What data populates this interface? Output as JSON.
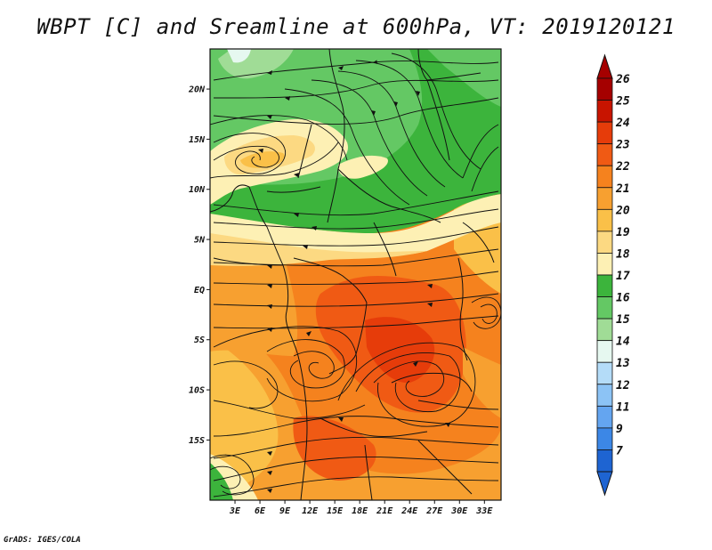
{
  "title": "WBPT [C] and Sreamline at 600hPa, VT: 2019120121",
  "credit": "GrADS: IGES/COLA",
  "map": {
    "lat_range": [
      -21,
      24
    ],
    "lon_range": [
      0,
      35
    ],
    "lat_ticks": [
      {
        "label": "20N",
        "lat": 20
      },
      {
        "label": "15N",
        "lat": 15
      },
      {
        "label": "10N",
        "lat": 10
      },
      {
        "label": "5N",
        "lat": 5
      },
      {
        "label": "EQ",
        "lat": 0
      },
      {
        "label": "5S",
        "lat": -5
      },
      {
        "label": "10S",
        "lat": -10
      },
      {
        "label": "15S",
        "lat": -15
      }
    ],
    "lon_ticks": [
      {
        "label": "3E",
        "lon": 3
      },
      {
        "label": "6E",
        "lon": 6
      },
      {
        "label": "9E",
        "lon": 9
      },
      {
        "label": "12E",
        "lon": 12
      },
      {
        "label": "15E",
        "lon": 15
      },
      {
        "label": "18E",
        "lon": 18
      },
      {
        "label": "21E",
        "lon": 21
      },
      {
        "label": "24E",
        "lon": 24
      },
      {
        "label": "27E",
        "lon": 27
      },
      {
        "label": "30E",
        "lon": 30
      },
      {
        "label": "33E",
        "lon": 33
      }
    ]
  },
  "colorbar": {
    "levels": [
      {
        "label": "26",
        "color": "#a50000"
      },
      {
        "label": "25",
        "color": "#c81400"
      },
      {
        "label": "24",
        "color": "#e63c0a"
      },
      {
        "label": "23",
        "color": "#f05a14"
      },
      {
        "label": "22",
        "color": "#f5821e"
      },
      {
        "label": "21",
        "color": "#f7a030"
      },
      {
        "label": "20",
        "color": "#fac048"
      },
      {
        "label": "19",
        "color": "#fcd982"
      },
      {
        "label": "18",
        "color": "#fdf0b4"
      },
      {
        "label": "17",
        "color": "#3cb43c"
      },
      {
        "label": "16",
        "color": "#64c864"
      },
      {
        "label": "15",
        "color": "#a0dc96"
      },
      {
        "label": "14",
        "color": "#e6f8f0"
      },
      {
        "label": "13",
        "color": "#b4dcf8"
      },
      {
        "label": "12",
        "color": "#8cc3f5"
      },
      {
        "label": "11",
        "color": "#64a5f0"
      },
      {
        "label": "9",
        "color": "#3c87e6"
      },
      {
        "label": "7",
        "color": "#1e64d2"
      }
    ],
    "top_arrow_color": "#a50000",
    "bottom_arrow_color": "#1e64d2"
  }
}
